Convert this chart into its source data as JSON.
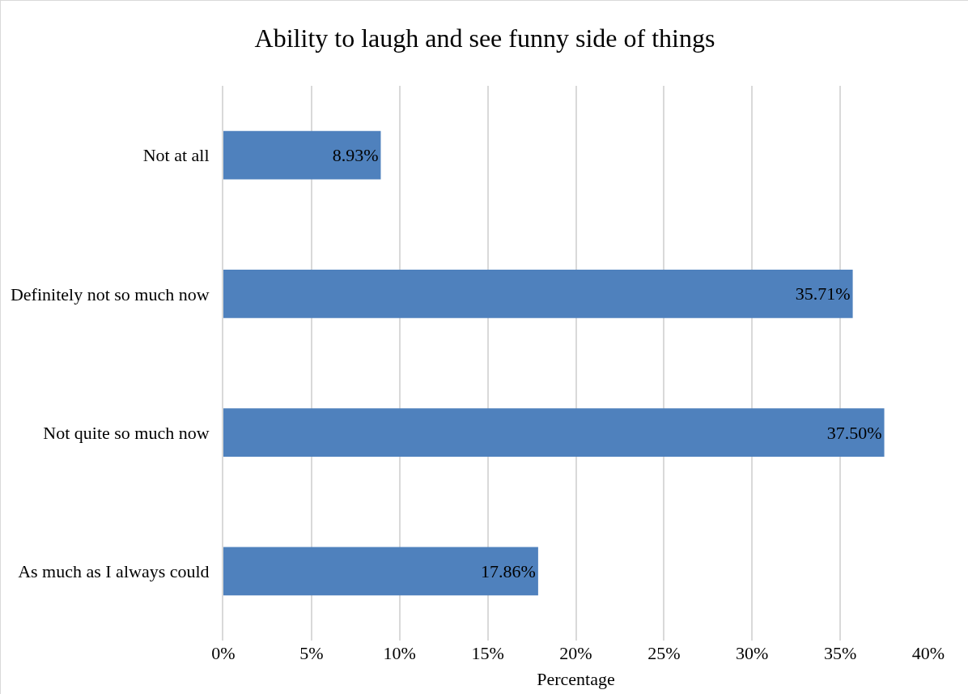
{
  "chart_data": {
    "type": "bar",
    "orientation": "horizontal",
    "title": "Ability to laugh and see funny side of things",
    "xlabel": "Percentage",
    "categories": [
      "Not at all",
      "Definitely not so much now",
      "Not quite so much now",
      "As much as I always could"
    ],
    "values": [
      8.93,
      35.71,
      37.5,
      17.86
    ],
    "value_labels": [
      "8.93%",
      "35.71%",
      "37.50%",
      "17.86%"
    ],
    "color": "#4f81bd",
    "xlim": [
      0,
      40
    ],
    "xticks": [
      {
        "value": 0,
        "label": "0%"
      },
      {
        "value": 5,
        "label": "5%"
      },
      {
        "value": 10,
        "label": "10%"
      },
      {
        "value": 15,
        "label": "15%"
      },
      {
        "value": 20,
        "label": "20%"
      },
      {
        "value": 25,
        "label": "25%"
      },
      {
        "value": 30,
        "label": "30%"
      },
      {
        "value": 35,
        "label": "35%"
      },
      {
        "value": 40,
        "label": "40%"
      }
    ],
    "grid": "x"
  }
}
